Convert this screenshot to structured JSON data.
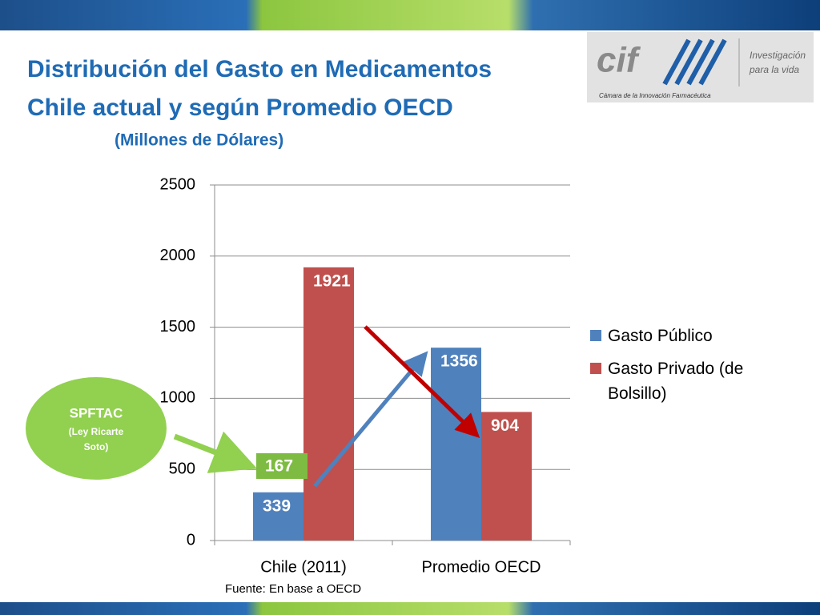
{
  "title": [
    "Distribución del Gasto en Medicamentos",
    "Chile actual y según Promedio OECD"
  ],
  "subtitle": "(Millones de Dólares)",
  "logo": {
    "brand": "cif",
    "tagline": [
      "Investigación",
      "para la vida"
    ],
    "caption": "Cámara de la Innovación Farmacéutica"
  },
  "callout": {
    "title": "SPFTAC",
    "subtitle": "(Ley Ricarte Soto)",
    "value": 167
  },
  "source": "Fuente: En base a OECD",
  "chart_data": {
    "type": "bar",
    "categories": [
      "Chile (2011)",
      "Promedio OECD"
    ],
    "series": [
      {
        "name": "Gasto Público",
        "color": "#4f81bd",
        "values": [
          339,
          1356
        ]
      },
      {
        "name": "Gasto Privado (de Bolsillo)",
        "color": "#c0504d",
        "values": [
          1921,
          904
        ]
      }
    ],
    "ylim": [
      0,
      2500
    ],
    "yticks": [
      0,
      500,
      1000,
      1500,
      2000,
      2500
    ],
    "grid": true,
    "legend": "right"
  }
}
